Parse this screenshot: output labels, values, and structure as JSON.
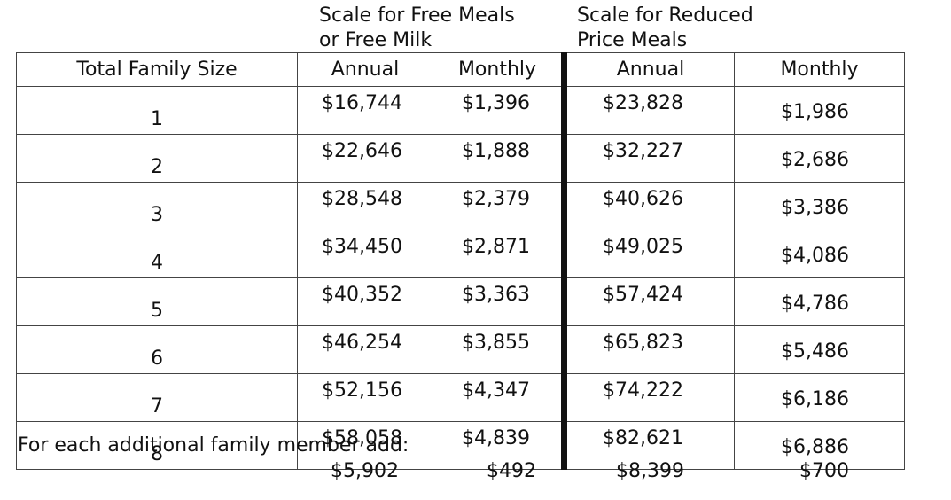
{
  "headers": {
    "free_scale": [
      "Scale for Free Meals",
      "or Free Milk"
    ],
    "reduced_scale": [
      "Scale for Reduced",
      "Price Meals"
    ]
  },
  "columns": {
    "family_size": "Total Family Size",
    "free_annual": "Annual",
    "free_monthly": "Monthly",
    "reduced_annual": "Annual",
    "reduced_monthly": "Monthly"
  },
  "rows": [
    {
      "size": "1",
      "free_annual": "$16,744",
      "free_monthly": "$1,396",
      "reduced_annual": "$23,828",
      "reduced_monthly": "$1,986"
    },
    {
      "size": "2",
      "free_annual": "$22,646",
      "free_monthly": "$1,888",
      "reduced_annual": "$32,227",
      "reduced_monthly": "$2,686"
    },
    {
      "size": "3",
      "free_annual": "$28,548",
      "free_monthly": "$2,379",
      "reduced_annual": "$40,626",
      "reduced_monthly": "$3,386"
    },
    {
      "size": "4",
      "free_annual": "$34,450",
      "free_monthly": "$2,871",
      "reduced_annual": "$49,025",
      "reduced_monthly": "$4,086"
    },
    {
      "size": "5",
      "free_annual": "$40,352",
      "free_monthly": "$3,363",
      "reduced_annual": "$57,424",
      "reduced_monthly": "$4,786"
    },
    {
      "size": "6",
      "free_annual": "$46,254",
      "free_monthly": "$3,855",
      "reduced_annual": "$65,823",
      "reduced_monthly": "$5,486"
    },
    {
      "size": "7",
      "free_annual": "$52,156",
      "free_monthly": "$4,347",
      "reduced_annual": "$74,222",
      "reduced_monthly": "$6,186"
    },
    {
      "size": "8",
      "free_annual": "$58,058",
      "free_monthly": "$4,839",
      "reduced_annual": "$82,621",
      "reduced_monthly": "$6,886"
    }
  ],
  "additional": {
    "label": "For each additional family member add:",
    "free_annual": "$5,902",
    "free_monthly": "$492",
    "reduced_annual": "$8,399",
    "reduced_monthly": "$700"
  }
}
